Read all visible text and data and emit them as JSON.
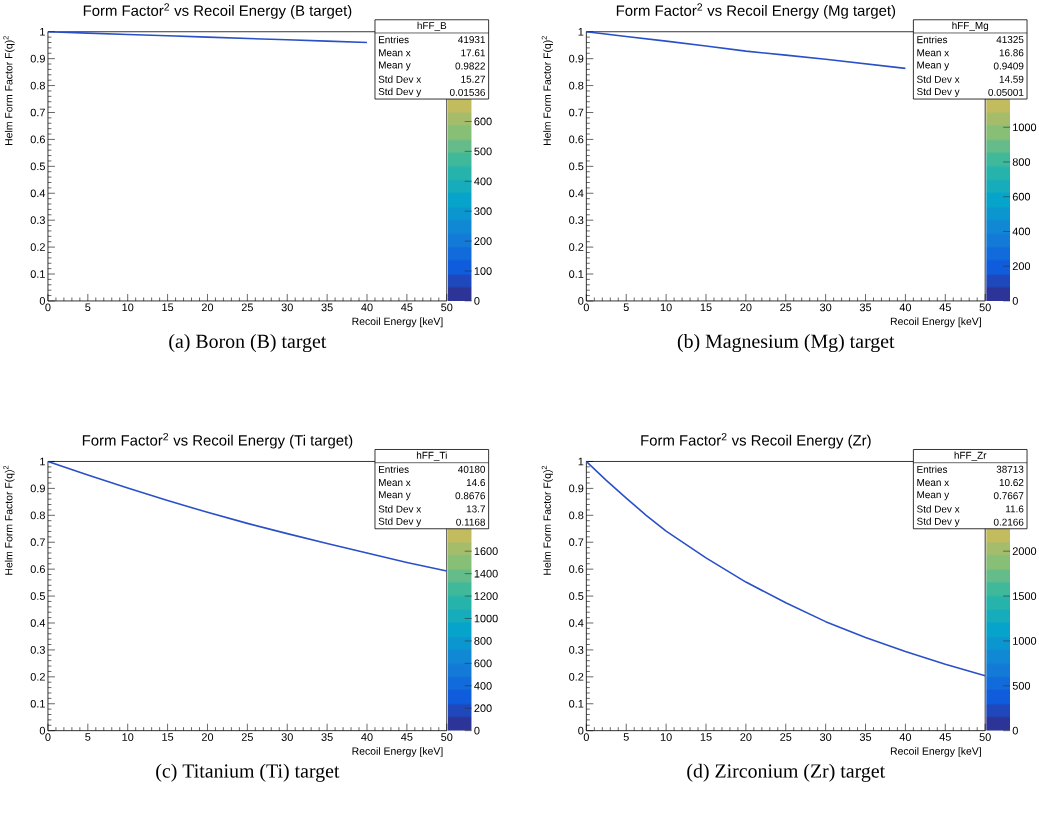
{
  "chart_data": [
    {
      "type": "line",
      "title": "Form Factor$^{2}$ vs Recoil Energy (B target)",
      "subtitle": "(a) Boron (B) target",
      "xlabel": "Recoil Energy [keV]",
      "ylabel": "Helm Form Factor F(q)$^{2}$",
      "x": [
        0,
        5,
        10,
        15,
        20,
        25,
        30,
        35,
        40
      ],
      "series": [
        {
          "color": "#2a50c8",
          "values": [
            1.0,
            0.995,
            0.99,
            0.985,
            0.98,
            0.975,
            0.97,
            0.965,
            0.96
          ]
        }
      ],
      "xlim": [
        0,
        50
      ],
      "ylim": [
        0,
        1
      ],
      "xticks": [
        0,
        5,
        10,
        15,
        20,
        25,
        30,
        35,
        40,
        45,
        50
      ],
      "yticks": [
        0,
        0.1,
        0.2,
        0.3,
        0.4,
        0.5,
        0.6,
        0.7,
        0.8,
        0.9,
        1
      ],
      "clim": [
        0,
        900
      ],
      "cticks": [
        0,
        100,
        200,
        300,
        400,
        500,
        600
      ],
      "annotations": [
        "hFF_B",
        "Entries",
        "41931",
        "Mean x",
        "17.61",
        "Mean y",
        "0.9822",
        "Std Dev x",
        "15.27",
        "Std Dev y",
        "0.01536"
      ]
    },
    {
      "type": "line",
      "title": "Form Factor$^{2}$ vs Recoil Energy (Mg target)",
      "subtitle": "(b) Magnesium (Mg) target",
      "xlabel": "Recoil Energy [keV]",
      "ylabel": "Helm Form Factor F(q)$^{2}$",
      "x": [
        0,
        5,
        10,
        15,
        20,
        25,
        30,
        35,
        40
      ],
      "series": [
        {
          "color": "#2a50c8",
          "values": [
            1.0,
            0.982,
            0.965,
            0.947,
            0.928,
            0.913,
            0.898,
            0.881,
            0.864
          ]
        }
      ],
      "xlim": [
        0,
        50
      ],
      "ylim": [
        0,
        1
      ],
      "xticks": [
        0,
        5,
        10,
        15,
        20,
        25,
        30,
        35,
        40,
        45,
        50
      ],
      "yticks": [
        0,
        0.1,
        0.2,
        0.3,
        0.4,
        0.5,
        0.6,
        0.7,
        0.8,
        0.9,
        1
      ],
      "clim": [
        0,
        1550
      ],
      "cticks": [
        0,
        200,
        400,
        600,
        800,
        1000
      ],
      "annotations": [
        "hFF_Mg",
        "Entries",
        "41325",
        "Mean x",
        "16.86",
        "Mean y",
        "0.9409",
        "Std Dev x",
        "14.59",
        "Std Dev y",
        "0.05001"
      ]
    },
    {
      "type": "line",
      "title": "Form Factor$^{2}$ vs Recoil Energy (Ti target)",
      "subtitle": "(c) Titanium (Ti) target",
      "xlabel": "Recoil Energy [keV]",
      "ylabel": "Helm Form Factor F(q)$^{2}$",
      "x": [
        0,
        5,
        10,
        15,
        20,
        25,
        30,
        35,
        40,
        45,
        50
      ],
      "series": [
        {
          "color": "#2a50c8",
          "values": [
            1.0,
            0.95,
            0.901,
            0.855,
            0.811,
            0.77,
            0.732,
            0.695,
            0.66,
            0.625,
            0.593
          ]
        }
      ],
      "xlim": [
        0,
        50
      ],
      "ylim": [
        0,
        1
      ],
      "xticks": [
        0,
        5,
        10,
        15,
        20,
        25,
        30,
        35,
        40,
        45,
        50
      ],
      "yticks": [
        0,
        0.1,
        0.2,
        0.3,
        0.4,
        0.5,
        0.6,
        0.7,
        0.8,
        0.9,
        1
      ],
      "clim": [
        0,
        2400
      ],
      "cticks": [
        0,
        200,
        400,
        600,
        800,
        1000,
        1200,
        1400,
        1600
      ],
      "annotations": [
        "hFF_Ti",
        "Entries",
        "40180",
        "Mean x",
        "14.6",
        "Mean y",
        "0.8676",
        "Std Dev x",
        "13.7",
        "Std Dev y",
        "0.1168"
      ]
    },
    {
      "type": "line",
      "title": "Form Factor$^{2}$ vs Recoil Energy (Zr)",
      "subtitle": "(d) Zirconium (Zr) target",
      "xlabel": "Recoil Energy [keV]",
      "ylabel": "Helm Form Factor F(q)$^{2}$",
      "x": [
        0,
        2.5,
        5,
        7.5,
        10,
        15,
        20,
        25,
        30,
        35,
        40,
        45,
        50
      ],
      "series": [
        {
          "color": "#2a50c8",
          "values": [
            1.0,
            0.93,
            0.864,
            0.8,
            0.741,
            0.642,
            0.552,
            0.475,
            0.405,
            0.346,
            0.294,
            0.247,
            0.204
          ]
        }
      ],
      "xlim": [
        0,
        50
      ],
      "ylim": [
        0,
        1
      ],
      "xticks": [
        0,
        5,
        10,
        15,
        20,
        25,
        30,
        35,
        40,
        45,
        50
      ],
      "yticks": [
        0,
        0.1,
        0.2,
        0.3,
        0.4,
        0.5,
        0.6,
        0.7,
        0.8,
        0.9,
        1
      ],
      "clim": [
        0,
        3000
      ],
      "cticks": [
        0,
        500,
        1000,
        1500,
        2000
      ],
      "annotations": [
        "hFF_Zr",
        "Entries",
        "38713",
        "Mean x",
        "10.62",
        "Mean y",
        "0.7667",
        "Std Dev x",
        "11.6",
        "Std Dev y",
        "0.2166"
      ]
    }
  ]
}
